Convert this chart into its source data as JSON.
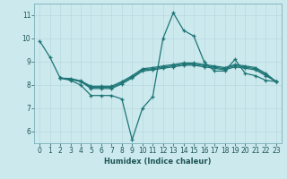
{
  "xlabel": "Humidex (Indice chaleur)",
  "xlim": [
    -0.5,
    23.5
  ],
  "ylim": [
    5.5,
    11.5
  ],
  "xticks": [
    0,
    1,
    2,
    3,
    4,
    5,
    6,
    7,
    8,
    9,
    10,
    11,
    12,
    13,
    14,
    15,
    16,
    17,
    18,
    19,
    20,
    21,
    22,
    23
  ],
  "yticks": [
    6,
    7,
    8,
    9,
    10,
    11
  ],
  "bg_color": "#cce9ee",
  "grid_major_color": "#b8d8de",
  "grid_minor_color": "#d4ecf0",
  "line_color": "#1e7575",
  "line1_x": [
    0,
    1,
    2,
    3,
    4,
    5,
    6,
    7,
    8,
    9,
    10,
    11,
    12,
    13,
    14,
    15,
    16,
    17,
    18,
    19,
    20,
    21,
    22,
    23
  ],
  "line1_y": [
    9.9,
    9.2,
    8.3,
    8.2,
    8.0,
    7.55,
    7.55,
    7.55,
    7.4,
    5.65,
    7.0,
    7.5,
    10.0,
    11.1,
    10.35,
    10.1,
    9.0,
    8.6,
    8.6,
    9.1,
    8.5,
    8.4,
    8.2,
    8.15
  ],
  "line2_x": [
    2,
    3,
    4,
    5,
    6,
    7,
    8,
    9,
    10,
    11,
    12,
    13,
    14,
    15,
    16,
    17,
    18,
    19,
    20,
    21,
    22,
    23
  ],
  "line2_y": [
    8.3,
    8.25,
    8.15,
    7.85,
    7.85,
    7.85,
    8.05,
    8.3,
    8.6,
    8.65,
    8.72,
    8.78,
    8.85,
    8.85,
    8.78,
    8.72,
    8.65,
    8.78,
    8.72,
    8.65,
    8.4,
    8.15
  ],
  "line3_x": [
    2,
    3,
    4,
    5,
    6,
    7,
    8,
    9,
    10,
    11,
    12,
    13,
    14,
    15,
    16,
    17,
    18,
    19,
    20,
    21,
    22,
    23
  ],
  "line3_y": [
    8.3,
    8.25,
    8.15,
    7.9,
    7.9,
    7.9,
    8.1,
    8.35,
    8.65,
    8.7,
    8.77,
    8.83,
    8.9,
    8.9,
    8.83,
    8.77,
    8.7,
    8.83,
    8.77,
    8.7,
    8.45,
    8.15
  ],
  "line4_x": [
    2,
    3,
    4,
    5,
    6,
    7,
    8,
    9,
    10,
    11,
    12,
    13,
    14,
    15,
    16,
    17,
    18,
    19,
    20,
    21,
    22,
    23
  ],
  "line4_y": [
    8.3,
    8.28,
    8.18,
    7.95,
    7.95,
    7.95,
    8.15,
    8.4,
    8.7,
    8.75,
    8.82,
    8.88,
    8.95,
    8.95,
    8.88,
    8.82,
    8.75,
    8.88,
    8.82,
    8.75,
    8.5,
    8.15
  ]
}
